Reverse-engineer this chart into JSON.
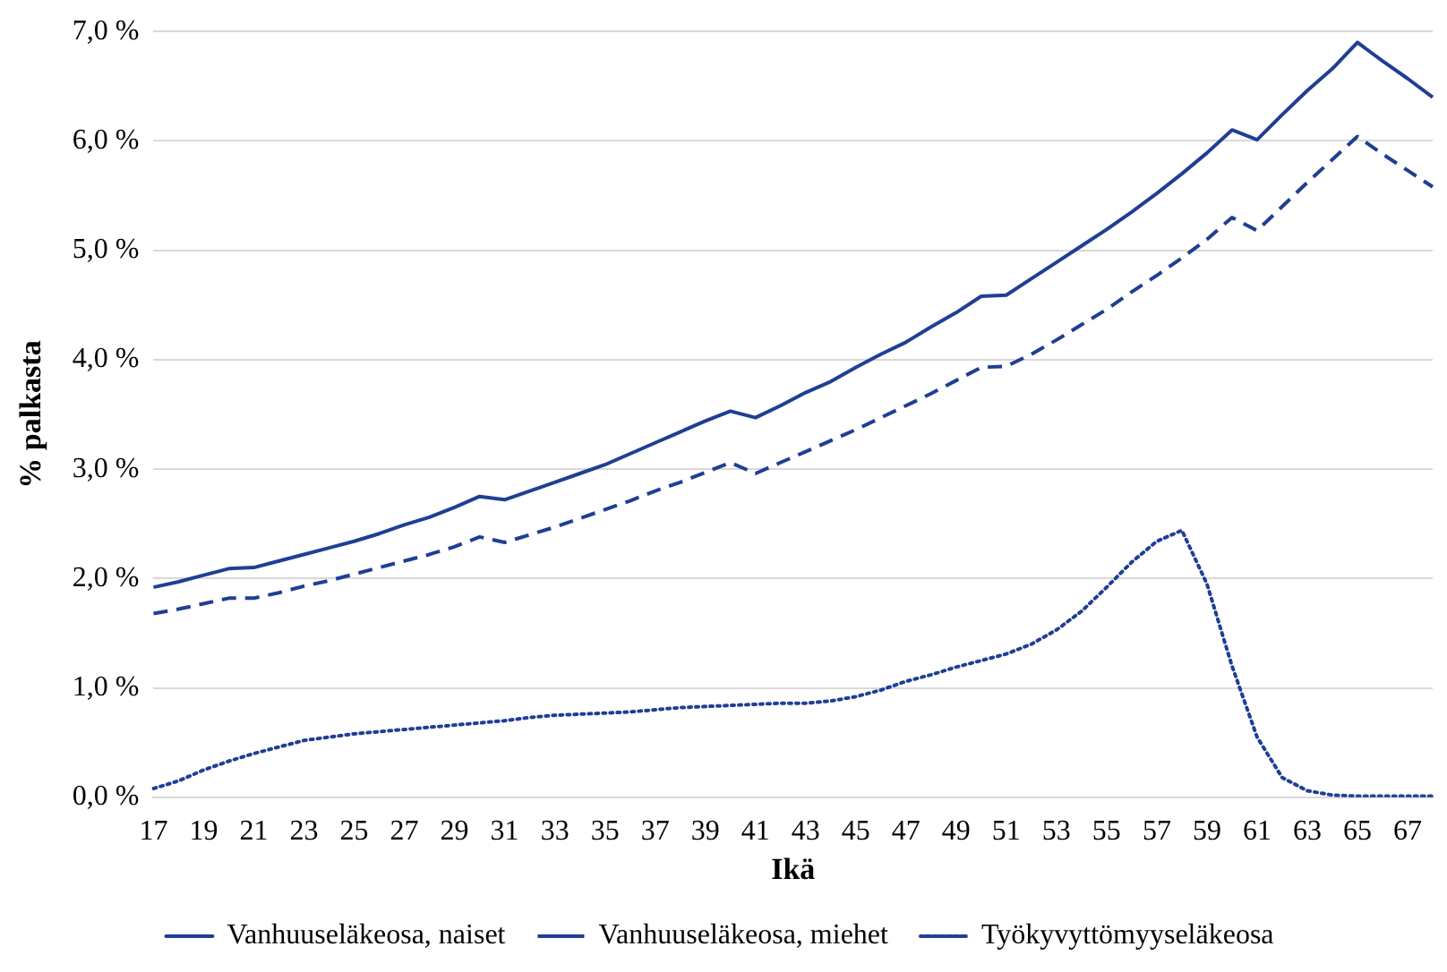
{
  "chart_data": {
    "type": "line",
    "xlabel": "Ikä",
    "ylabel": "% palkasta",
    "categories": [
      "17",
      null,
      "19",
      null,
      "21",
      null,
      "23",
      null,
      "25",
      null,
      "27",
      null,
      "29",
      null,
      "31",
      null,
      "33",
      null,
      "35",
      null,
      "37",
      null,
      "39",
      null,
      "41",
      null,
      "43",
      null,
      "45",
      null,
      "47",
      null,
      "49",
      null,
      "51",
      null,
      "53",
      null,
      "55",
      null,
      "57",
      null,
      "59",
      null,
      "61",
      null,
      "63",
      null,
      "65",
      null,
      "67",
      null
    ],
    "ylim": [
      0,
      7
    ],
    "yticks": [
      {
        "value": 0,
        "label": "0,0 %"
      },
      {
        "value": 1,
        "label": "1,0 %"
      },
      {
        "value": 2,
        "label": "2,0 %"
      },
      {
        "value": 3,
        "label": "3,0 %"
      },
      {
        "value": 4,
        "label": "4,0 %"
      },
      {
        "value": 5,
        "label": "5,0 %"
      },
      {
        "value": 6,
        "label": "6,0 %"
      },
      {
        "value": 7,
        "label": "7,0 %"
      }
    ],
    "grid": "y",
    "legend": "bottom",
    "marker": "none",
    "series": [
      {
        "name": "Vanhuuseläkeosa, naiset",
        "color": "#1f3f94",
        "line_style": "solid",
        "values": [
          1.92,
          1.97,
          2.03,
          2.09,
          2.1,
          2.16,
          2.22,
          2.28,
          2.34,
          2.41,
          2.49,
          2.56,
          2.65,
          2.75,
          2.72,
          2.8,
          2.88,
          2.96,
          3.04,
          3.14,
          3.24,
          3.34,
          3.44,
          3.53,
          3.47,
          3.58,
          3.7,
          3.8,
          3.93,
          4.05,
          4.16,
          4.3,
          4.43,
          4.58,
          4.59,
          4.74,
          4.89,
          5.04,
          5.19,
          5.35,
          5.52,
          5.7,
          5.89,
          6.1,
          6.01,
          6.24,
          6.46,
          6.66,
          6.9,
          6.73,
          6.57,
          6.4
        ]
      },
      {
        "name": "Vanhuuseläkeosa, miehet",
        "color": "#1f3f94",
        "line_style": "dashed",
        "values": [
          1.68,
          1.72,
          1.77,
          1.82,
          1.82,
          1.87,
          1.93,
          1.98,
          2.04,
          2.1,
          2.16,
          2.22,
          2.29,
          2.38,
          2.33,
          2.4,
          2.47,
          2.55,
          2.63,
          2.71,
          2.8,
          2.88,
          2.97,
          3.06,
          2.96,
          3.06,
          3.16,
          3.26,
          3.36,
          3.47,
          3.58,
          3.69,
          3.81,
          3.93,
          3.94,
          4.05,
          4.18,
          4.32,
          4.46,
          4.62,
          4.77,
          4.93,
          5.1,
          5.3,
          5.18,
          5.4,
          5.62,
          5.83,
          6.04,
          5.88,
          5.73,
          5.58
        ]
      },
      {
        "name": "Työkyvyttömyyseläkeosa",
        "color": "#1f3f94",
        "line_style": "dotted",
        "values": [
          0.08,
          0.15,
          0.25,
          0.33,
          0.4,
          0.46,
          0.52,
          0.55,
          0.58,
          0.6,
          0.62,
          0.64,
          0.66,
          0.68,
          0.7,
          0.73,
          0.75,
          0.76,
          0.77,
          0.78,
          0.8,
          0.82,
          0.83,
          0.84,
          0.85,
          0.86,
          0.86,
          0.88,
          0.92,
          0.98,
          1.06,
          1.12,
          1.19,
          1.25,
          1.31,
          1.4,
          1.53,
          1.7,
          1.92,
          2.15,
          2.34,
          2.44,
          1.95,
          1.2,
          0.55,
          0.18,
          0.06,
          0.02,
          0.01,
          0.01,
          0.01,
          0.01
        ]
      }
    ]
  }
}
